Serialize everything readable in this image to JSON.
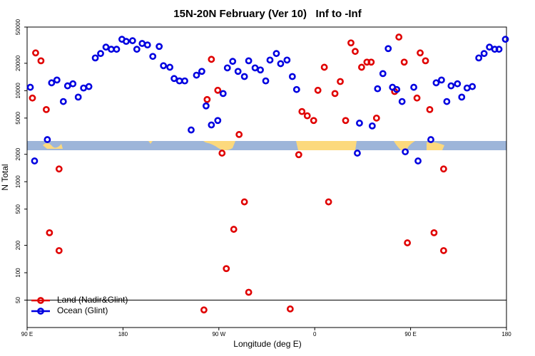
{
  "chart_data": {
    "type": "scatter",
    "title": "15N-20N February (Ver 10)   Inf to -Inf",
    "x_label": "Longitude (deg E)",
    "y_label": "N Total",
    "log_y": true,
    "xlim": [
      90,
      540
    ],
    "xticks": [
      {
        "value": 90,
        "label": "90 E"
      },
      {
        "value": 180,
        "label": "180"
      },
      {
        "value": 270,
        "label": "90 W"
      },
      {
        "value": 360,
        "label": "0"
      },
      {
        "value": 450,
        "label": "90 E"
      },
      {
        "value": 540,
        "label": "180"
      }
    ],
    "ylim": [
      25,
      50000
    ],
    "yticks": [
      50,
      100,
      200,
      500,
      1000,
      2000,
      5000,
      10000,
      20000,
      50000
    ],
    "hline": 50,
    "legend": "bottom-left",
    "series": [
      {
        "name": "Land (Nadir&Glint)",
        "color": "#e00000",
        "x": [
          95,
          98,
          103,
          108,
          111,
          120,
          120,
          256,
          259,
          263,
          269,
          273,
          277,
          284,
          289,
          294,
          298,
          337,
          345,
          348,
          353,
          359,
          363,
          369,
          373,
          379,
          384,
          389,
          394,
          398,
          404,
          409,
          413,
          418,
          435,
          439,
          444,
          447,
          456,
          459,
          464,
          468,
          472,
          481,
          481
        ],
        "values": [
          8300,
          26000,
          21300,
          6200,
          275,
          1380,
          175,
          39,
          8000,
          22100,
          10100,
          2060,
          111,
          300,
          3300,
          600,
          61,
          40,
          1980,
          5900,
          5300,
          4700,
          10100,
          18100,
          600,
          9300,
          12600,
          4700,
          33500,
          27000,
          18100,
          20600,
          20600,
          5000,
          9800,
          38800,
          20600,
          213,
          8300,
          26000,
          21300,
          6200,
          275,
          1380,
          175
        ]
      },
      {
        "name": "Ocean (Glint)",
        "color": "#0000e0",
        "x": [
          93,
          97,
          109,
          113,
          118,
          124,
          128,
          133,
          138,
          143,
          148,
          154,
          159,
          164,
          169,
          174,
          179,
          183,
          189,
          193,
          198,
          203,
          208,
          214,
          218,
          224,
          228,
          233,
          238,
          244,
          249,
          254,
          258,
          263,
          269,
          274,
          278,
          283,
          288,
          294,
          298,
          304,
          309,
          314,
          318,
          324,
          328,
          334,
          339,
          343,
          400,
          402,
          414,
          419,
          424,
          429,
          433,
          437,
          442,
          445,
          453,
          457,
          469,
          474,
          479,
          484,
          488,
          494,
          498,
          503,
          508,
          514,
          519,
          524,
          529,
          533,
          539
        ],
        "values": [
          10900,
          1690,
          2900,
          12200,
          13100,
          7600,
          11300,
          11900,
          8500,
          10700,
          11100,
          22900,
          25600,
          30100,
          28500,
          28500,
          36700,
          34800,
          35400,
          28500,
          33000,
          31800,
          23800,
          30600,
          18800,
          18100,
          13600,
          12800,
          12800,
          3700,
          14800,
          16300,
          6800,
          4200,
          4700,
          9300,
          17800,
          21000,
          16300,
          14300,
          21300,
          17800,
          16900,
          12800,
          21700,
          25600,
          19800,
          21700,
          14300,
          10300,
          2060,
          4400,
          4100,
          10500,
          15400,
          29000,
          10900,
          10300,
          7600,
          2130,
          10900,
          1690,
          2900,
          12200,
          13100,
          7600,
          11300,
          11900,
          8500,
          10700,
          11100,
          22900,
          25600,
          30100,
          28500,
          28500,
          36700
        ]
      }
    ]
  }
}
